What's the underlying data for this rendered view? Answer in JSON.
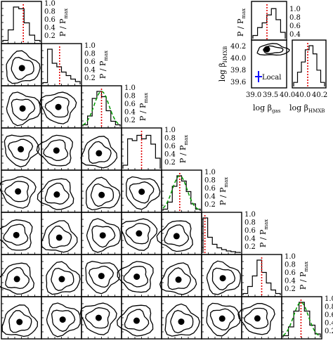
{
  "chart_data": {
    "type": "corner-plot",
    "marginal_yticks": [
      "0.2",
      "0.4",
      "0.6",
      "0.8",
      "1.0"
    ],
    "marginal_ylabel": "P / P",
    "marginal_ylabel_sub": "max",
    "columns": [
      {
        "hist": [
          0.05,
          0.35,
          1.0,
          0.95,
          0.55,
          0.2,
          0.05
        ],
        "median": 0.55,
        "gauss": false
      },
      {
        "hist": [
          0.05,
          1.0,
          0.6,
          0.5,
          0.35,
          0.25,
          0.15,
          0.08
        ],
        "median": 0.45,
        "gauss": false
      },
      {
        "hist": [
          0.05,
          0.3,
          0.8,
          1.0,
          0.85,
          0.45,
          0.15,
          0.05
        ],
        "median": 0.5,
        "gauss": true
      },
      {
        "hist": [
          0.1,
          0.85,
          0.8,
          0.95,
          0.85,
          0.95,
          0.7,
          0.3
        ],
        "median": 0.5,
        "gauss": false
      },
      {
        "hist": [
          0.05,
          0.25,
          0.7,
          1.0,
          0.85,
          0.55,
          0.2,
          0.05
        ],
        "median": 0.45,
        "gauss": true
      },
      {
        "hist": [
          1.0,
          0.45,
          0.25,
          0.15,
          0.1,
          0.06,
          0.04,
          0.02
        ],
        "median": 0.05,
        "gauss": false
      },
      {
        "hist": [
          0.05,
          0.25,
          0.55,
          1.0,
          0.65,
          0.35,
          0.15,
          0.05
        ],
        "median": 0.5,
        "gauss": false
      },
      {
        "hist": [
          0.05,
          0.3,
          0.75,
          1.0,
          0.75,
          0.35,
          0.1
        ],
        "median": 0.48,
        "gauss": true
      }
    ],
    "inset": {
      "hist_top": [
        0.1,
        0.35,
        0.5,
        0.75,
        0.95,
        0.6,
        0.2
      ],
      "hist_right": [
        0.1,
        0.35,
        0.6,
        0.9,
        1.0,
        0.8,
        0.4,
        0.1
      ],
      "xlabel": "log β",
      "xlabel_sub": "gas",
      "ylabel": "log β",
      "ylabel_sub": "HMXB",
      "xticks": [
        "39.0",
        "39.5",
        "40.0"
      ],
      "yticks": [
        "39.6",
        "39.8",
        "40.0",
        "40.2"
      ],
      "right_xticks": [
        "40.0",
        "40.2"
      ],
      "right_xlabel": "log β",
      "right_xlabel_sub": "HMXB",
      "local_label": "Local",
      "local_color": "#1010ff",
      "local_value": {
        "x": 39.08,
        "y": 39.7
      }
    },
    "colors": {
      "median": "#e00000",
      "gauss": "#009900",
      "ink": "#000000"
    }
  }
}
